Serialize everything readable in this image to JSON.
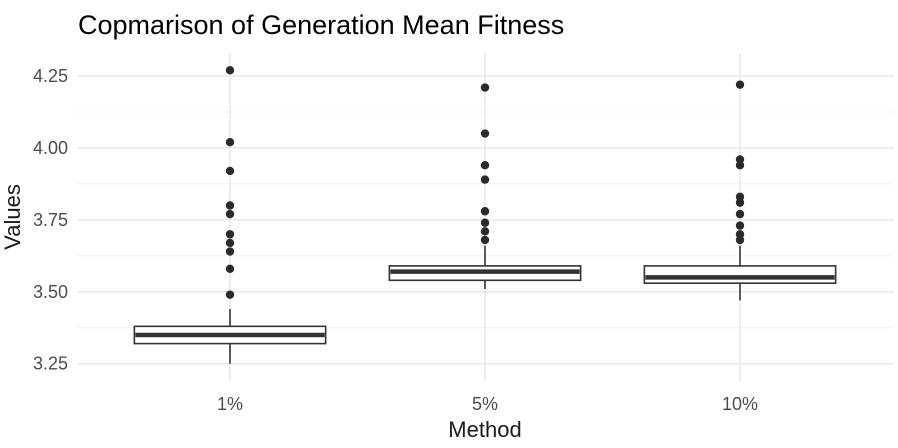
{
  "chart_data": {
    "type": "boxplot",
    "title": "Copmarison of Generation Mean Fitness",
    "xlabel": "Method",
    "ylabel": "Values",
    "categories": [
      "1%",
      "5%",
      "10%"
    ],
    "y_ticks": [
      3.25,
      3.5,
      3.75,
      4.0,
      4.25
    ],
    "y_tick_labels": [
      "3.25",
      "3.50",
      "3.75",
      "4.00",
      "4.25"
    ],
    "ylim": [
      3.19,
      4.33
    ],
    "grid": {
      "horizontal_major": true,
      "horizontal_minor": true,
      "vertical_at_categories": true
    },
    "legend": "none",
    "series": [
      {
        "category": "1%",
        "whisker_low": 3.25,
        "q1": 3.32,
        "median": 3.35,
        "q3": 3.38,
        "whisker_high": 3.44,
        "outliers": [
          3.49,
          3.58,
          3.64,
          3.67,
          3.7,
          3.77,
          3.8,
          3.92,
          4.02,
          4.27
        ]
      },
      {
        "category": "5%",
        "whisker_low": 3.51,
        "q1": 3.54,
        "median": 3.57,
        "q3": 3.59,
        "whisker_high": 3.66,
        "outliers": [
          3.68,
          3.71,
          3.74,
          3.78,
          3.89,
          3.94,
          4.05,
          4.21
        ]
      },
      {
        "category": "10%",
        "whisker_low": 3.47,
        "q1": 3.53,
        "median": 3.55,
        "q3": 3.59,
        "whisker_high": 3.66,
        "outliers": [
          3.68,
          3.7,
          3.73,
          3.77,
          3.81,
          3.83,
          3.94,
          3.96,
          4.22
        ]
      }
    ],
    "colors": {
      "background": "#ffffff",
      "box_fill": "#ffffff",
      "box_stroke": "#333333",
      "median": "#333333",
      "whisker": "#333333",
      "outlier": "#2b2b2b",
      "grid_major": "#e5e5e5",
      "grid_minor": "#f0f0f0",
      "tick_label": "#4d4d4d",
      "title": "#000000",
      "axis_title": "#1a1a1a"
    }
  }
}
